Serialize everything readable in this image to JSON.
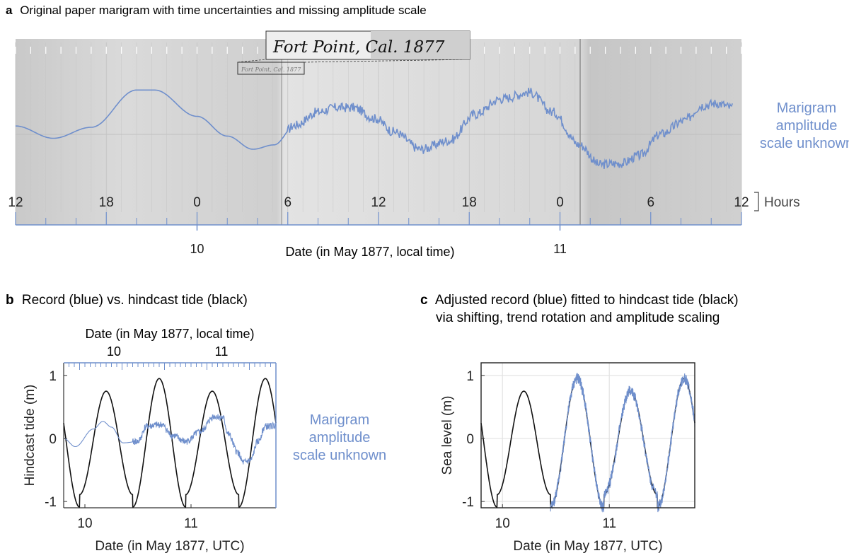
{
  "panel_a": {
    "letter": "a",
    "title": "Original paper marigram with time uncertainties and missing amplitude scale",
    "inset_label": "Fort Point, Cal. 1877",
    "side_label": [
      "Marigram",
      "amplitude",
      "scale unknown"
    ],
    "hours_unit": "Hours",
    "hour_ticks": [
      "12",
      "18",
      "0",
      "6",
      "12",
      "18",
      "0",
      "6",
      "12"
    ],
    "date_ticks": [
      "10",
      "11"
    ],
    "xlabel": "Date (in May 1877, local time)"
  },
  "panel_b": {
    "letter": "b",
    "title": "Record (blue) vs. hindcast tide (black)",
    "top_xlabel": "Date (in May 1877, local time)",
    "top_ticks": [
      "10",
      "11"
    ],
    "side_label": [
      "Marigram",
      "amplitude",
      "scale unknown"
    ]
  },
  "panel_c": {
    "letter": "c",
    "title_lines": [
      "Adjusted record (blue) fitted to hindcast tide (black)",
      "via shifting, trend rotation and amplitude scaling"
    ]
  },
  "colors": {
    "record": "#6f8fcc",
    "hindcast": "#111111",
    "paper": "#d4d4d4",
    "grid": "#e2e2e2",
    "axis": "#333333"
  },
  "chart_data": [
    {
      "type": "line",
      "panel": "a",
      "x_unit": "hours relative to 10 May 1877 00:00 local time",
      "xlim": [
        -12,
        36
      ],
      "hour_ticks": [
        -12,
        -6,
        0,
        6,
        12,
        18,
        24,
        30,
        36
      ],
      "hour_tick_labels": [
        "12",
        "18",
        "0",
        "6",
        "12",
        "18",
        "0",
        "6",
        "12"
      ],
      "date_ticks": [
        0,
        24
      ],
      "date_tick_labels": [
        "10",
        "11"
      ],
      "series": [
        {
          "color": "#6f8fcc",
          "x": [
            -12,
            -9.5,
            -7,
            -4,
            -2.8,
            0,
            2,
            3.7,
            5.1,
            6.5,
            8,
            9.2,
            10.3,
            11.8,
            13,
            14.8,
            16.7,
            18.4,
            20.1,
            22,
            23.5,
            25.3,
            26.6,
            28.1,
            29.2,
            30.7,
            32.2,
            33.4,
            34.4,
            35.4
          ],
          "y": [
            0.03,
            -0.25,
            0.0,
            0.85,
            0.85,
            0.25,
            -0.2,
            -0.5,
            -0.4,
            0.05,
            0.35,
            0.45,
            0.45,
            0.2,
            -0.1,
            -0.5,
            -0.3,
            0.3,
            0.65,
            0.8,
            0.35,
            -0.4,
            -0.85,
            -0.82,
            -0.65,
            -0.15,
            0.15,
            0.5,
            0.55,
            0.45
          ],
          "noise_from": 6
        }
      ],
      "xlabel": "Date (in May 1877, local time)"
    },
    {
      "type": "line",
      "panel": "b",
      "x_unit": "days of May 1877 (UTC)",
      "xlim": [
        9.8,
        11.8
      ],
      "ylim": [
        -1.1,
        1.2
      ],
      "yticks": [
        -1,
        0,
        1
      ],
      "xticks": [
        10,
        11
      ],
      "series": [
        {
          "name": "hindcast",
          "color": "#111111",
          "amp": [
            0.82,
            1.02
          ],
          "period_days": 0.5,
          "offset_days": 10.2,
          "bias": -0.07
        },
        {
          "name": "record",
          "color": "#6f8fcc",
          "x": [
            9.8,
            9.91,
            10.08,
            10.17,
            10.25,
            10.36,
            10.5,
            10.58,
            10.72,
            10.82,
            10.95,
            11.08,
            11.22,
            11.3,
            11.35,
            11.44,
            11.49,
            11.56,
            11.63,
            11.7,
            11.8
          ],
          "y": [
            0,
            -0.13,
            0.15,
            0.27,
            0.18,
            -0.07,
            -0.05,
            0.19,
            0.22,
            0.05,
            -0.05,
            0.1,
            0.35,
            0.33,
            0.07,
            -0.22,
            -0.38,
            -0.35,
            -0.05,
            0.19,
            0.2
          ],
          "noise_from": 10.45
        }
      ],
      "xlabel": "Date (in May 1877, UTC)",
      "ylabel": "Hindcast tide (m)"
    },
    {
      "type": "line",
      "panel": "c",
      "x_unit": "days of May 1877 (UTC)",
      "xlim": [
        9.8,
        11.8
      ],
      "ylim": [
        -1.1,
        1.2
      ],
      "yticks": [
        -1,
        0,
        1
      ],
      "xticks": [
        10,
        11
      ],
      "series": [
        {
          "name": "hindcast",
          "color": "#111111",
          "amp": [
            0.82,
            1.02
          ],
          "period_days": 0.5,
          "offset_days": 10.2,
          "bias": -0.07
        },
        {
          "name": "record",
          "color": "#6f8fcc",
          "follows": "hindcast",
          "start_x": 10.45,
          "noise": 0.09
        }
      ],
      "xlabel": "Date (in May 1877, UTC)",
      "ylabel": "Sea level (m)"
    }
  ]
}
